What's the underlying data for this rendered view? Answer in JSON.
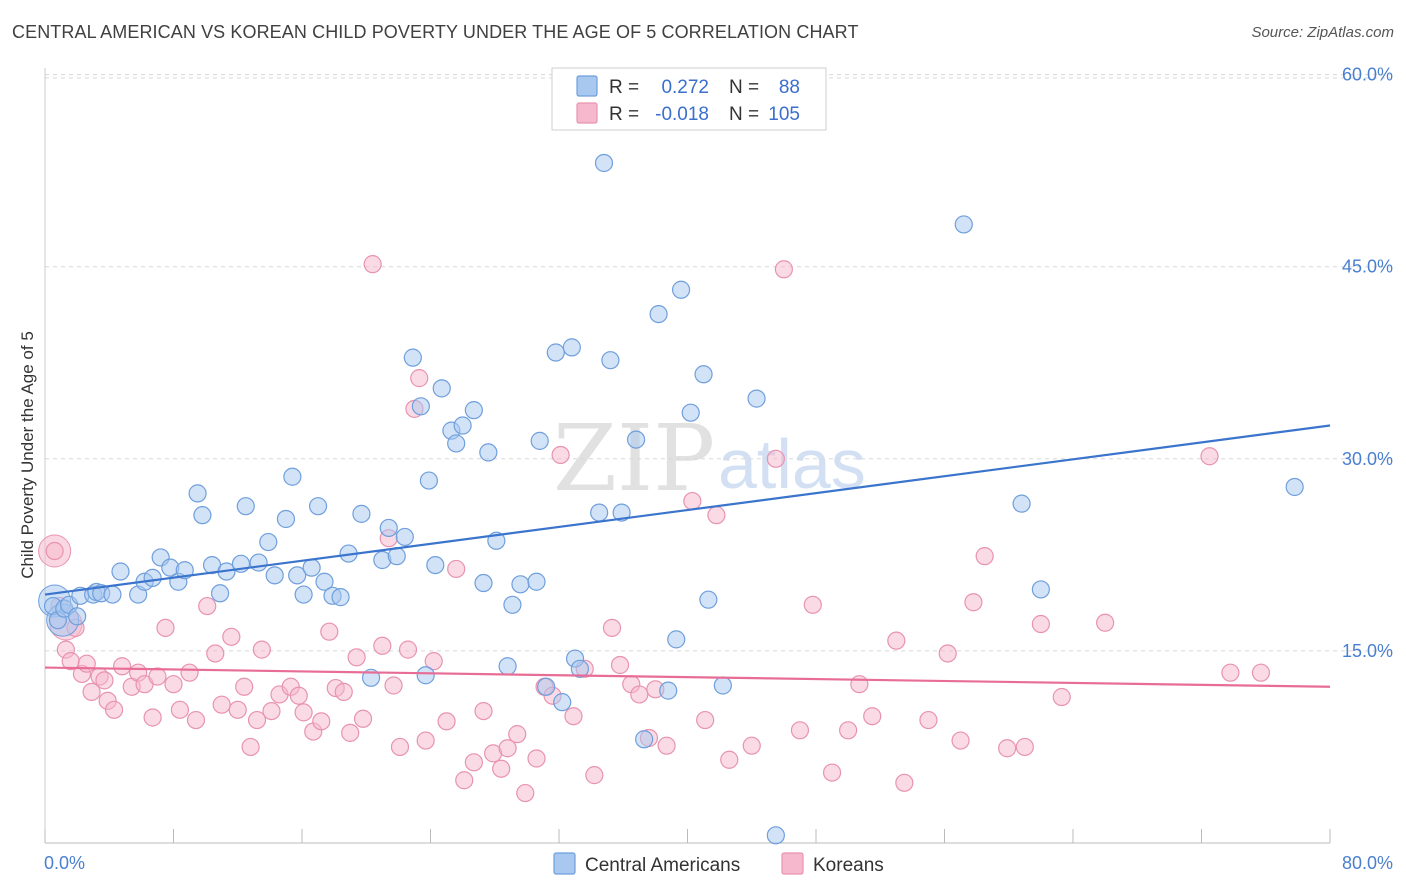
{
  "title": "CENTRAL AMERICAN VS KOREAN CHILD POVERTY UNDER THE AGE OF 5 CORRELATION CHART",
  "source": "Source: ZipAtlas.com",
  "watermark": {
    "zip": "ZIP",
    "atlas": "atlas"
  },
  "colors": {
    "central_fill": "#a8c8f0",
    "central_stroke": "#6f9fdc",
    "central_line": "#3a74cc",
    "korean_fill": "#f6b8cc",
    "korean_stroke": "#e893b0",
    "korean_line": "#e86d96",
    "grid": "#d8d8d8",
    "tick": "#4a7fd0"
  },
  "legend_box": {
    "rows": [
      {
        "r_label": "R =",
        "r_value": "0.272",
        "n_label": "N =",
        "n_value": "88"
      },
      {
        "r_label": "R =",
        "r_value": "-0.018",
        "n_label": "N =",
        "n_value": "105"
      }
    ]
  },
  "chart_data": {
    "type": "scatter",
    "xlabel": "",
    "ylabel": "Child Poverty Under the Age of 5",
    "xlim": [
      0,
      80
    ],
    "ylim": [
      0,
      62
    ],
    "x_ticks": [
      {
        "value": 0,
        "label": "0.0%"
      },
      {
        "value": 80,
        "label": "80.0%"
      }
    ],
    "y_ticks": [
      {
        "value": 15,
        "label": "15.0%"
      },
      {
        "value": 30,
        "label": "30.0%"
      },
      {
        "value": 45,
        "label": "45.0%"
      },
      {
        "value": 60,
        "label": "60.0%"
      }
    ],
    "grid": true,
    "legend_position": "bottom-center",
    "series": [
      {
        "name": "Central Americans",
        "trend": {
          "x": [
            0,
            80
          ],
          "y": [
            19.4,
            32.6
          ]
        },
        "points": [
          [
            0.5,
            18.5
          ],
          [
            0.8,
            17.4
          ],
          [
            1.2,
            18.3
          ],
          [
            1.5,
            18.6
          ],
          [
            2.0,
            17.7
          ],
          [
            2.2,
            19.3
          ],
          [
            3.0,
            19.4
          ],
          [
            3.2,
            19.6
          ],
          [
            3.5,
            19.5
          ],
          [
            4.2,
            19.4
          ],
          [
            4.7,
            21.2
          ],
          [
            5.8,
            19.4
          ],
          [
            6.2,
            20.4
          ],
          [
            6.7,
            20.7
          ],
          [
            7.2,
            22.3
          ],
          [
            7.8,
            21.5
          ],
          [
            8.3,
            20.4
          ],
          [
            8.7,
            21.3
          ],
          [
            9.5,
            27.3
          ],
          [
            9.8,
            25.6
          ],
          [
            10.4,
            21.7
          ],
          [
            10.9,
            19.5
          ],
          [
            11.3,
            21.2
          ],
          [
            12.2,
            21.8
          ],
          [
            12.5,
            26.3
          ],
          [
            13.3,
            21.9
          ],
          [
            13.9,
            23.5
          ],
          [
            14.3,
            20.9
          ],
          [
            15.0,
            25.3
          ],
          [
            15.4,
            28.6
          ],
          [
            15.7,
            20.9
          ],
          [
            16.1,
            19.4
          ],
          [
            16.6,
            21.5
          ],
          [
            17.0,
            26.3
          ],
          [
            17.4,
            20.4
          ],
          [
            17.9,
            19.3
          ],
          [
            18.4,
            19.2
          ],
          [
            18.9,
            22.6
          ],
          [
            19.7,
            25.7
          ],
          [
            20.3,
            12.9
          ],
          [
            21.0,
            22.1
          ],
          [
            21.4,
            24.6
          ],
          [
            21.9,
            22.4
          ],
          [
            22.4,
            23.9
          ],
          [
            22.9,
            37.9
          ],
          [
            23.4,
            34.1
          ],
          [
            23.7,
            13.1
          ],
          [
            23.9,
            28.3
          ],
          [
            24.3,
            21.7
          ],
          [
            24.7,
            35.5
          ],
          [
            25.3,
            32.2
          ],
          [
            25.6,
            31.2
          ],
          [
            26.0,
            32.6
          ],
          [
            26.7,
            33.8
          ],
          [
            27.3,
            20.3
          ],
          [
            27.6,
            30.5
          ],
          [
            28.1,
            23.6
          ],
          [
            28.8,
            13.8
          ],
          [
            29.1,
            18.6
          ],
          [
            29.6,
            20.2
          ],
          [
            30.6,
            20.4
          ],
          [
            30.8,
            31.4
          ],
          [
            31.2,
            12.2
          ],
          [
            31.8,
            38.3
          ],
          [
            32.2,
            11.0
          ],
          [
            32.8,
            38.7
          ],
          [
            33.0,
            14.4
          ],
          [
            33.3,
            13.6
          ],
          [
            34.5,
            25.8
          ],
          [
            34.8,
            53.1
          ],
          [
            35.2,
            37.7
          ],
          [
            35.9,
            25.8
          ],
          [
            36.8,
            31.5
          ],
          [
            37.3,
            8.1
          ],
          [
            38.2,
            41.3
          ],
          [
            38.8,
            11.9
          ],
          [
            39.3,
            15.9
          ],
          [
            39.6,
            43.2
          ],
          [
            40.2,
            33.6
          ],
          [
            41.0,
            36.6
          ],
          [
            41.3,
            19.0
          ],
          [
            42.2,
            12.3
          ],
          [
            44.3,
            34.7
          ],
          [
            45.5,
            0.6
          ],
          [
            57.2,
            48.3
          ],
          [
            60.8,
            26.5
          ],
          [
            62.0,
            19.8
          ],
          [
            77.8,
            27.8
          ]
        ],
        "big_points": [
          [
            0.6,
            18.9
          ],
          [
            1.1,
            17.4
          ]
        ]
      },
      {
        "name": "Koreans",
        "trend": {
          "x": [
            0,
            80
          ],
          "y": [
            13.7,
            12.2
          ]
        },
        "points": [
          [
            0.6,
            22.8
          ],
          [
            0.9,
            18.5
          ],
          [
            1.3,
            15.1
          ],
          [
            1.6,
            14.2
          ],
          [
            1.9,
            16.8
          ],
          [
            2.3,
            13.2
          ],
          [
            2.6,
            14.0
          ],
          [
            2.9,
            11.8
          ],
          [
            3.4,
            13.0
          ],
          [
            3.7,
            12.7
          ],
          [
            3.9,
            11.1
          ],
          [
            4.3,
            10.4
          ],
          [
            4.8,
            13.8
          ],
          [
            5.4,
            12.2
          ],
          [
            5.8,
            13.3
          ],
          [
            6.2,
            12.4
          ],
          [
            6.7,
            9.8
          ],
          [
            7.0,
            13.0
          ],
          [
            7.5,
            16.8
          ],
          [
            8.0,
            12.4
          ],
          [
            8.4,
            10.4
          ],
          [
            9.0,
            13.3
          ],
          [
            9.4,
            9.6
          ],
          [
            10.1,
            18.5
          ],
          [
            10.6,
            14.8
          ],
          [
            11.0,
            10.8
          ],
          [
            11.6,
            16.1
          ],
          [
            12.0,
            10.4
          ],
          [
            12.4,
            12.2
          ],
          [
            12.8,
            7.5
          ],
          [
            13.2,
            9.6
          ],
          [
            13.5,
            15.1
          ],
          [
            14.1,
            10.3
          ],
          [
            14.6,
            11.6
          ],
          [
            15.3,
            12.2
          ],
          [
            15.8,
            11.5
          ],
          [
            16.1,
            10.2
          ],
          [
            16.7,
            8.7
          ],
          [
            17.2,
            9.5
          ],
          [
            17.7,
            16.5
          ],
          [
            18.1,
            12.1
          ],
          [
            18.6,
            11.8
          ],
          [
            19.0,
            8.6
          ],
          [
            19.4,
            14.5
          ],
          [
            19.8,
            9.7
          ],
          [
            20.4,
            45.2
          ],
          [
            21.0,
            15.4
          ],
          [
            21.4,
            23.8
          ],
          [
            21.7,
            12.3
          ],
          [
            22.1,
            7.5
          ],
          [
            22.6,
            15.1
          ],
          [
            23.0,
            33.9
          ],
          [
            23.3,
            36.3
          ],
          [
            23.7,
            8.0
          ],
          [
            24.2,
            14.2
          ],
          [
            25.0,
            9.5
          ],
          [
            25.6,
            21.4
          ],
          [
            26.1,
            4.9
          ],
          [
            26.7,
            6.3
          ],
          [
            27.3,
            10.3
          ],
          [
            27.9,
            7.0
          ],
          [
            28.4,
            5.8
          ],
          [
            28.8,
            7.4
          ],
          [
            29.4,
            8.5
          ],
          [
            29.9,
            3.9
          ],
          [
            30.6,
            6.6
          ],
          [
            31.1,
            12.2
          ],
          [
            31.6,
            11.5
          ],
          [
            32.1,
            30.3
          ],
          [
            32.9,
            9.9
          ],
          [
            33.6,
            13.6
          ],
          [
            34.2,
            5.3
          ],
          [
            35.3,
            16.8
          ],
          [
            35.8,
            13.9
          ],
          [
            36.5,
            12.4
          ],
          [
            37.0,
            11.6
          ],
          [
            37.6,
            8.2
          ],
          [
            38.0,
            12.0
          ],
          [
            38.7,
            7.6
          ],
          [
            40.3,
            26.7
          ],
          [
            41.1,
            9.6
          ],
          [
            41.8,
            25.6
          ],
          [
            42.6,
            6.5
          ],
          [
            44.0,
            7.6
          ],
          [
            45.5,
            30.0
          ],
          [
            46.0,
            44.8
          ],
          [
            47.0,
            8.8
          ],
          [
            47.8,
            18.6
          ],
          [
            49.0,
            5.5
          ],
          [
            50.0,
            8.8
          ],
          [
            50.7,
            12.4
          ],
          [
            51.5,
            9.9
          ],
          [
            53.0,
            15.8
          ],
          [
            53.5,
            4.7
          ],
          [
            55.0,
            9.6
          ],
          [
            56.2,
            14.8
          ],
          [
            57.0,
            8.0
          ],
          [
            57.8,
            18.8
          ],
          [
            58.5,
            22.4
          ],
          [
            59.9,
            7.4
          ],
          [
            61.0,
            7.5
          ],
          [
            62.0,
            17.1
          ],
          [
            63.3,
            11.4
          ],
          [
            66.0,
            17.2
          ],
          [
            72.5,
            30.2
          ],
          [
            73.8,
            13.3
          ],
          [
            75.7,
            13.3
          ]
        ],
        "big_points": [
          [
            0.6,
            22.8
          ],
          [
            1.3,
            17.1
          ]
        ]
      }
    ]
  }
}
